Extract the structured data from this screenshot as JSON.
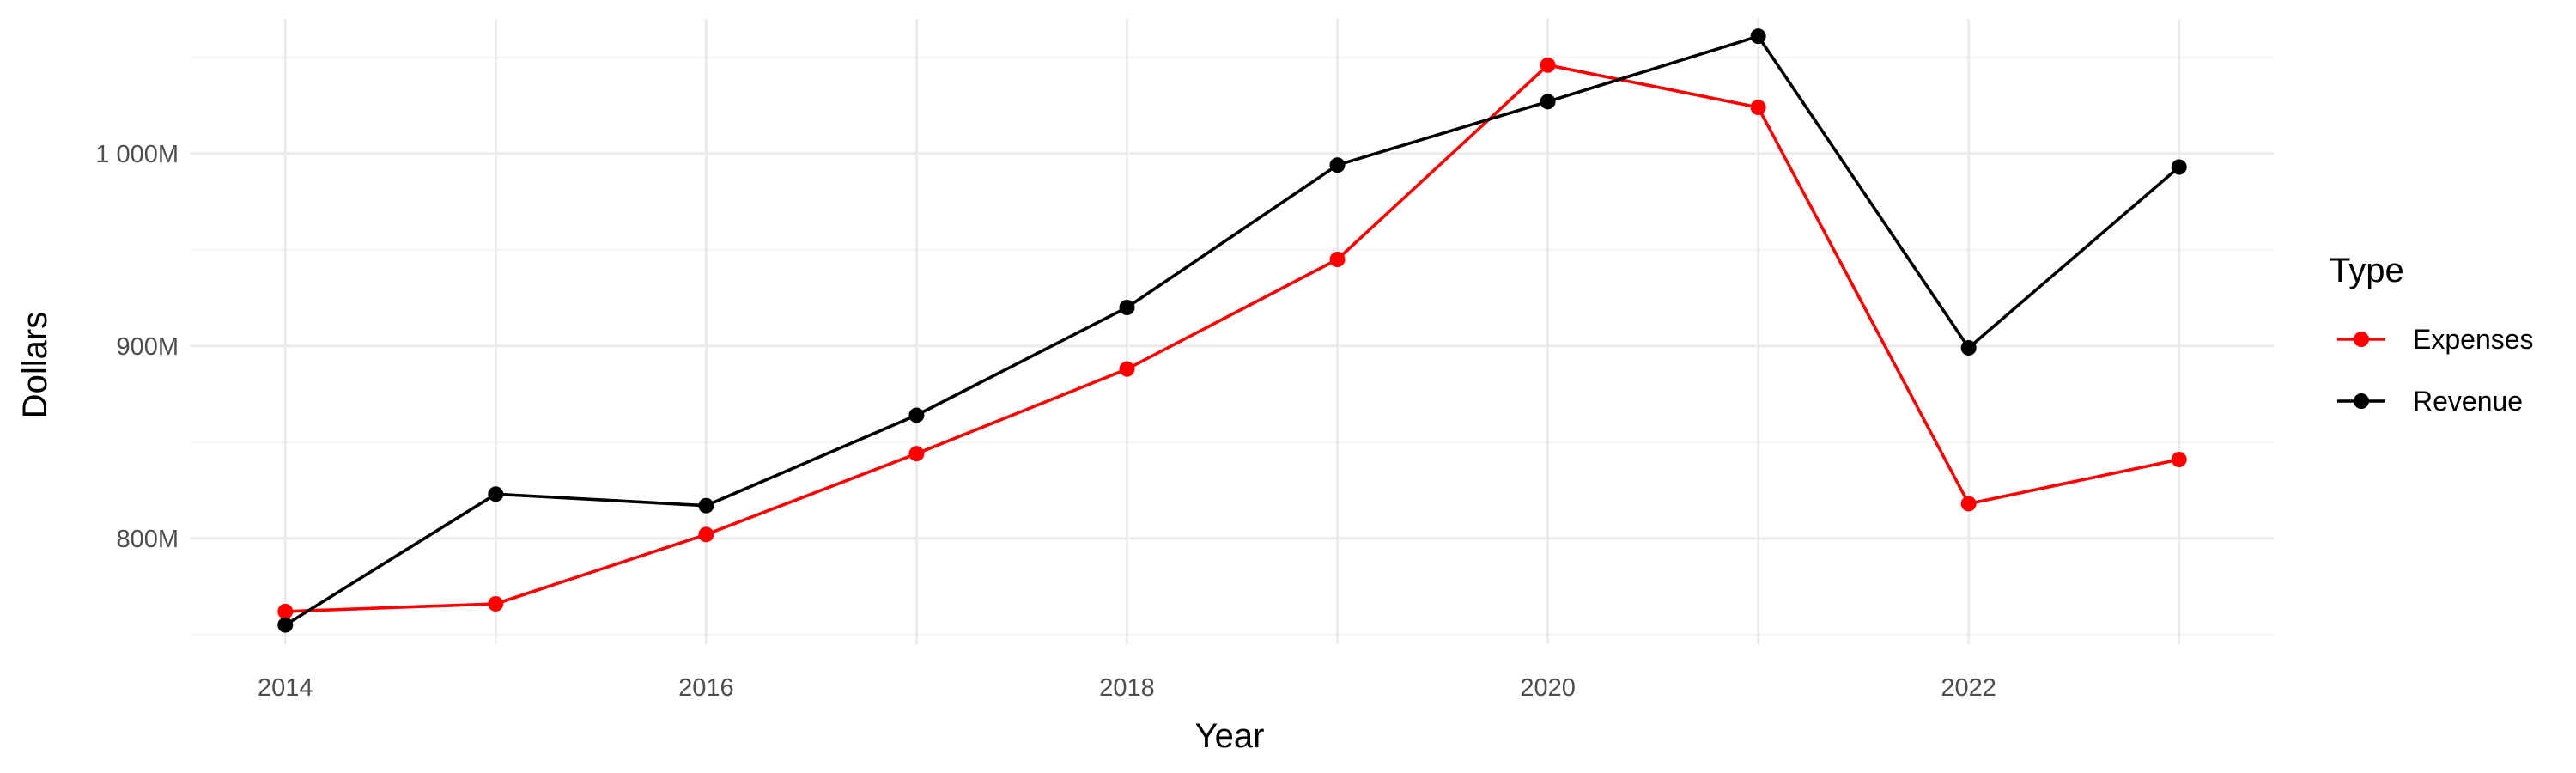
{
  "chart_data": {
    "type": "line",
    "title": "",
    "xlabel": "Year",
    "ylabel": "Dollars",
    "x": [
      2014,
      2015,
      2016,
      2017,
      2018,
      2019,
      2020,
      2021,
      2022,
      2023
    ],
    "xlim": [
      2013.55,
      2023.45
    ],
    "ylim": [
      745,
      1070
    ],
    "x_ticks": [
      2014,
      2016,
      2018,
      2020,
      2022
    ],
    "x_tick_labels": [
      "2014",
      "2016",
      "2018",
      "2020",
      "2022"
    ],
    "y_ticks": [
      800,
      900,
      1000
    ],
    "y_tick_labels": [
      "800M",
      "900M",
      "1 000M"
    ],
    "y_units": "M",
    "grid": true,
    "legend": {
      "title": "Type",
      "position": "right"
    },
    "series": [
      {
        "name": "Expenses",
        "color": "#ff0000",
        "values": [
          762,
          766,
          802,
          844,
          888,
          945,
          1046,
          1024,
          818,
          841
        ]
      },
      {
        "name": "Revenue",
        "color": "#000000",
        "values": [
          755,
          823,
          817,
          864,
          920,
          994,
          1027,
          1061,
          899,
          993
        ]
      }
    ]
  }
}
